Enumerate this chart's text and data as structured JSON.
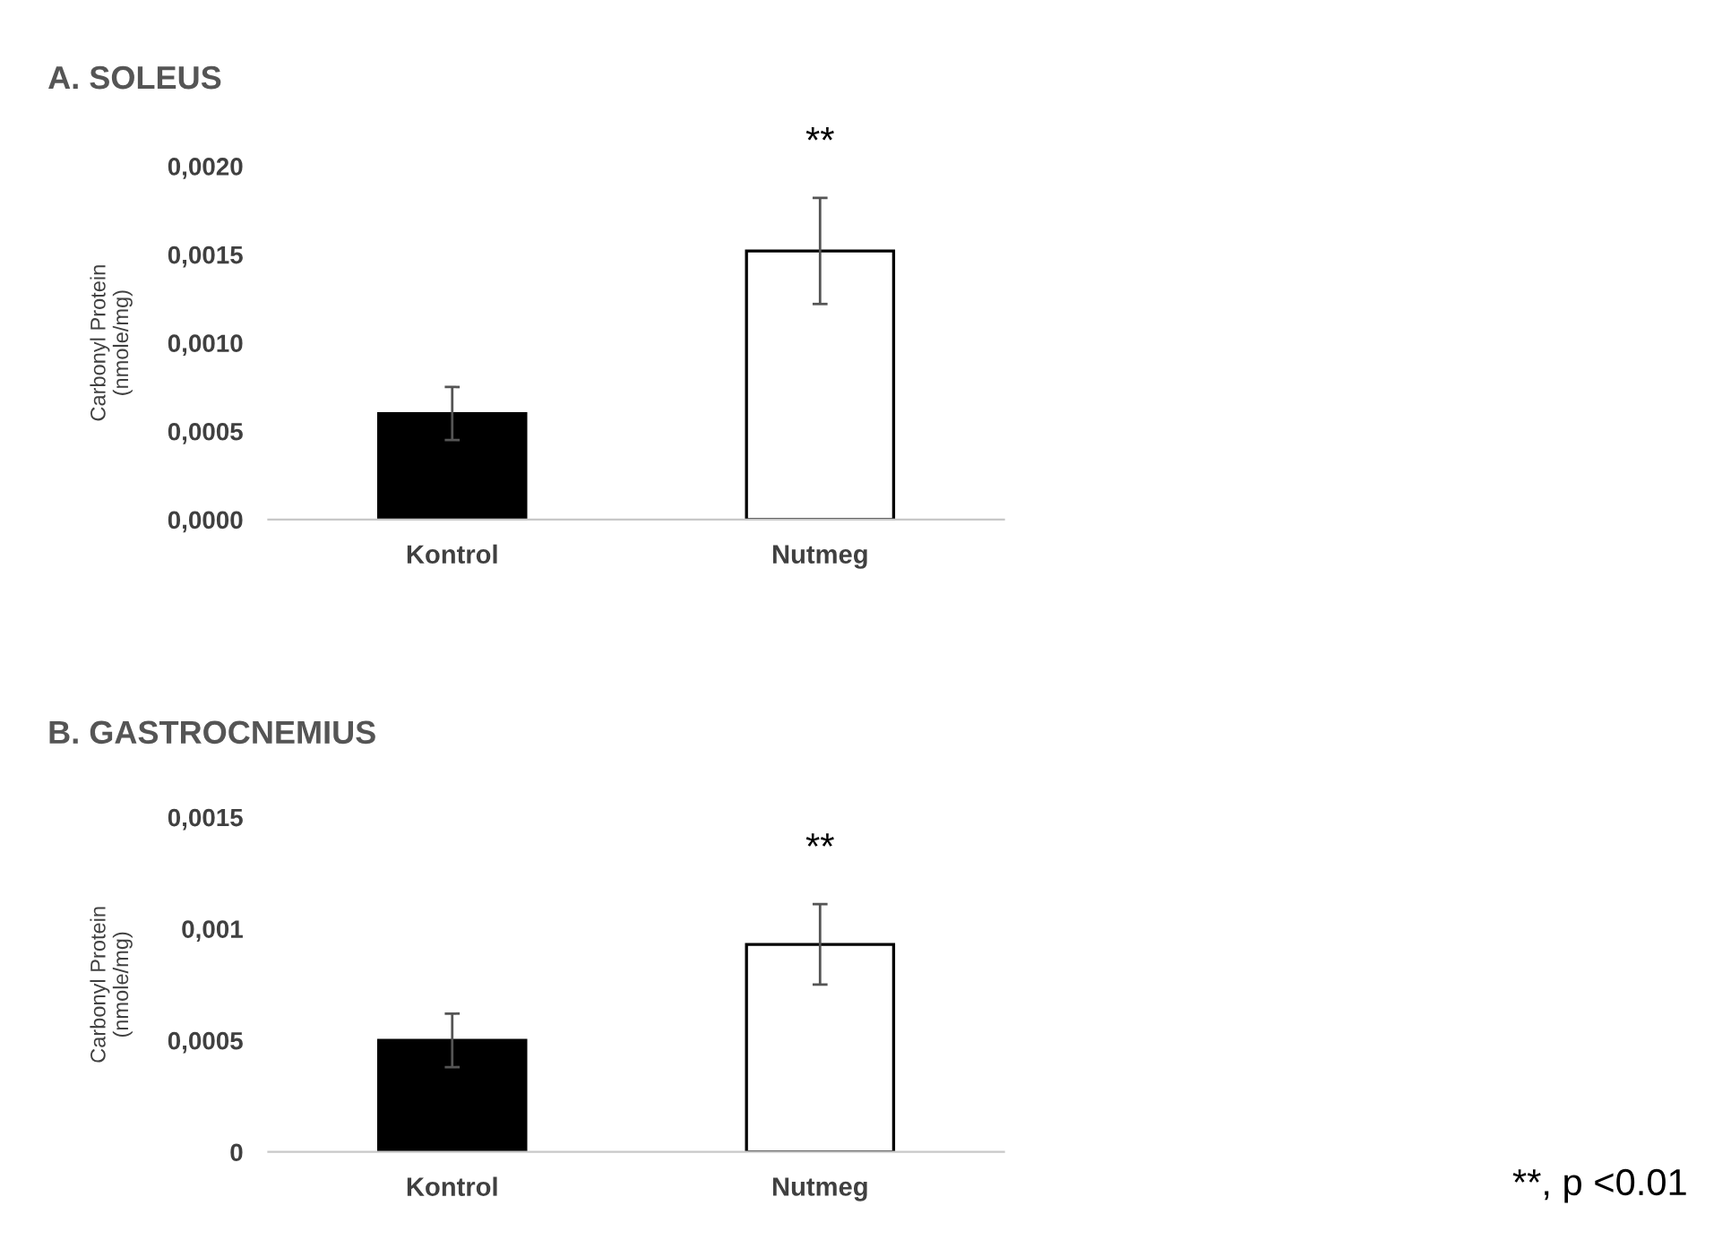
{
  "chart_data": [
    {
      "type": "bar",
      "title": "A. SOLEUS",
      "ylabel": "Carbonyl Protein\n(nmole/mg)",
      "categories": [
        "Kontrol",
        "Nutmeg"
      ],
      "values": [
        0.0006,
        0.00152
      ],
      "errors": [
        0.00015,
        0.0003
      ],
      "colors": [
        "#000000",
        "#ffffff"
      ],
      "ylim": [
        0,
        0.002
      ],
      "yticks": [
        {
          "value": 0,
          "label": "0,0000"
        },
        {
          "value": 0.0005,
          "label": "0,0005"
        },
        {
          "value": 0.001,
          "label": "0,0010"
        },
        {
          "value": 0.0015,
          "label": "0,0015"
        },
        {
          "value": 0.002,
          "label": "0,0020"
        }
      ],
      "grid": false,
      "annotations": [
        "**"
      ]
    },
    {
      "type": "bar",
      "title": "B. GASTROCNEMIUS",
      "ylabel": "Carbonyl Protein\n(nmole/mg)",
      "categories": [
        "Kontrol",
        "Nutmeg"
      ],
      "values": [
        0.0005,
        0.00093
      ],
      "errors": [
        0.00012,
        0.00018
      ],
      "colors": [
        "#000000",
        "#ffffff"
      ],
      "ylim": [
        0,
        0.0015
      ],
      "yticks": [
        0,
        {
          "value": 0.0005,
          "label": "0,0005"
        },
        {
          "value": 0.001,
          "label": "0,001"
        },
        {
          "value": 0.0015,
          "label": "0,0015"
        }
      ],
      "grid": false,
      "annotations": [
        "**",
        "**, p <0.01"
      ]
    }
  ]
}
